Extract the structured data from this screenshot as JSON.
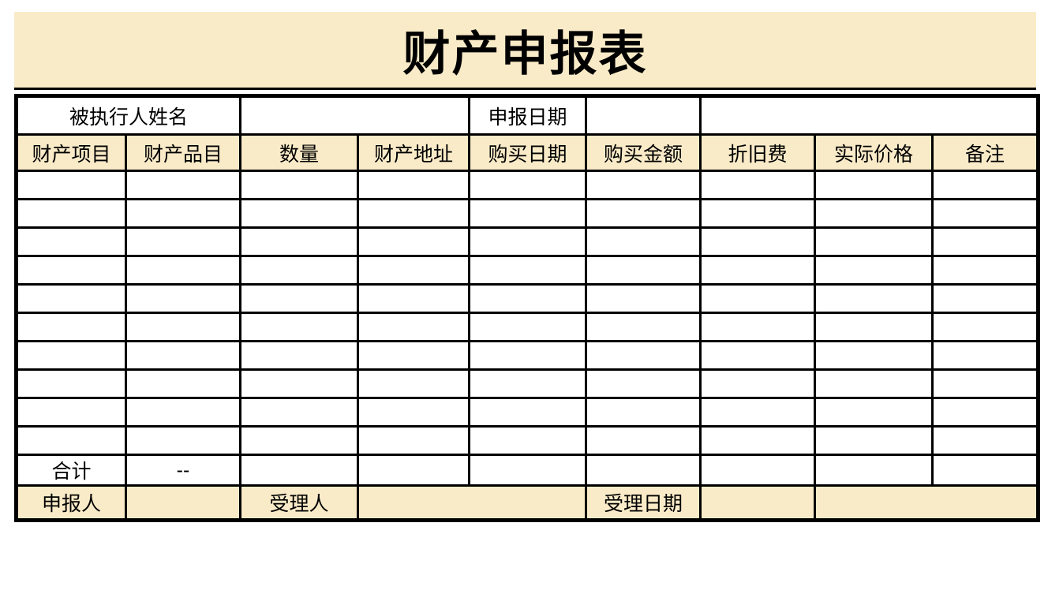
{
  "title": "财产申报表",
  "colors": {
    "banner_bg": "#FAEBC8",
    "header_bg": "#FAEBC8",
    "footer_bg": "#FAEBC8",
    "border": "#000000",
    "text": "#000000",
    "page_bg": "#FFFFFF"
  },
  "info_row": {
    "name_label": "被执行人姓名",
    "name_value": "",
    "date_label": "申报日期",
    "date_value": "",
    "extra_value": ""
  },
  "table": {
    "columns": [
      "财产项目",
      "财产品目",
      "数量",
      "财产地址",
      "购买日期",
      "购买金额",
      "折旧费",
      "实际价格",
      "备注"
    ],
    "empty_row_count": 10,
    "total_row": {
      "label": "合计",
      "quantity_value": "--"
    }
  },
  "footer_row": {
    "declarant_label": "申报人",
    "declarant_value": "",
    "acceptor_label": "受理人",
    "acceptor_value": "",
    "accept_date_label": "受理日期",
    "accept_date_value": "",
    "extra_value": ""
  }
}
